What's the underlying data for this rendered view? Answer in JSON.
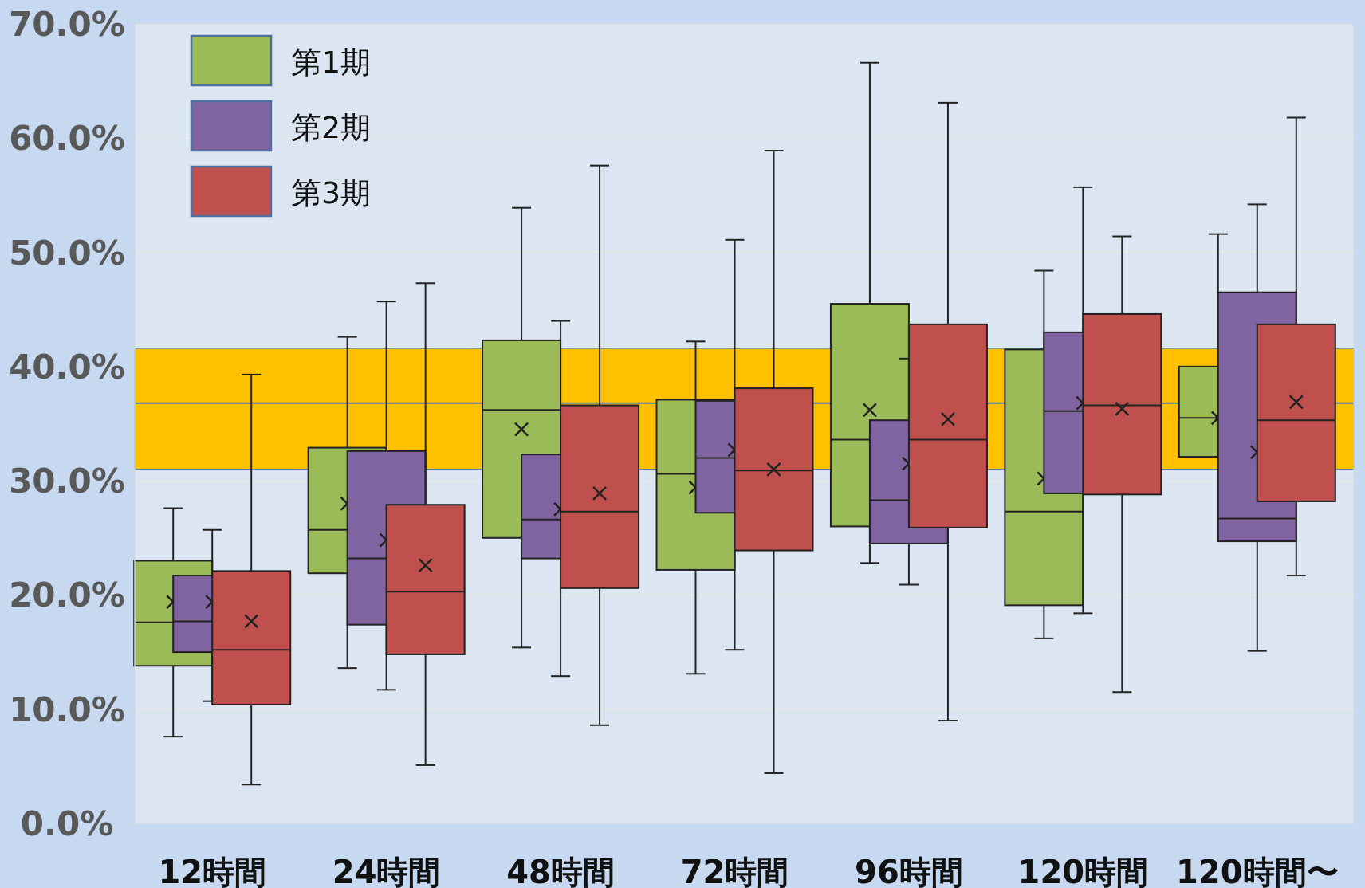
{
  "chart_data": {
    "type": "box",
    "categories": [
      "12時間",
      "24時間",
      "48時間",
      "72時間",
      "96時間",
      "120時間",
      "120時間〜"
    ],
    "series": [
      {
        "name": "第1期",
        "color": "#9bbb59",
        "boxes": [
          {
            "low": 7.6,
            "q1": 13.8,
            "median": 17.6,
            "q3": 23.0,
            "high": 27.6,
            "mean": 19.4
          },
          {
            "low": 13.6,
            "q1": 21.9,
            "median": 25.7,
            "q3": 32.9,
            "high": 42.6,
            "mean": 28.0
          },
          {
            "low": 15.4,
            "q1": 25.0,
            "median": 36.2,
            "q3": 42.3,
            "high": 53.9,
            "mean": 34.5
          },
          {
            "low": 13.1,
            "q1": 22.2,
            "median": 30.6,
            "q3": 37.1,
            "high": 42.2,
            "mean": 29.4
          },
          {
            "low": 22.8,
            "q1": 26.0,
            "median": 33.6,
            "q3": 45.5,
            "high": 66.6,
            "mean": 36.2
          },
          {
            "low": 16.2,
            "q1": 19.1,
            "median": 27.3,
            "q3": 41.5,
            "high": 48.4,
            "mean": 30.2
          },
          {
            "low": 32.1,
            "q1": 32.1,
            "median": 35.5,
            "q3": 40.0,
            "high": 51.6,
            "mean": 35.5
          }
        ]
      },
      {
        "name": "第2期",
        "color": "#8064a2",
        "boxes": [
          {
            "low": 10.7,
            "q1": 15.0,
            "median": 17.7,
            "q3": 21.7,
            "high": 25.7,
            "mean": 19.4
          },
          {
            "low": 11.7,
            "q1": 17.4,
            "median": 23.2,
            "q3": 32.6,
            "high": 45.7,
            "mean": 24.8
          },
          {
            "low": 12.9,
            "q1": 23.2,
            "median": 26.6,
            "q3": 32.3,
            "high": 44.0,
            "mean": 27.5
          },
          {
            "low": 15.2,
            "q1": 27.2,
            "median": 32.0,
            "q3": 37.0,
            "high": 51.1,
            "mean": 32.7
          },
          {
            "low": 20.9,
            "q1": 24.5,
            "median": 28.3,
            "q3": 35.3,
            "high": 40.7,
            "mean": 31.5
          },
          {
            "low": 18.4,
            "q1": 28.9,
            "median": 36.1,
            "q3": 43.0,
            "high": 55.7,
            "mean": 36.8
          },
          {
            "low": 15.1,
            "q1": 24.7,
            "median": 26.7,
            "q3": 46.5,
            "high": 54.2,
            "mean": 32.5
          }
        ]
      },
      {
        "name": "第3期",
        "color": "#c0504d",
        "boxes": [
          {
            "low": 3.4,
            "q1": 10.4,
            "median": 15.2,
            "q3": 22.1,
            "high": 39.3,
            "mean": 17.7
          },
          {
            "low": 5.1,
            "q1": 14.8,
            "median": 20.3,
            "q3": 27.9,
            "high": 47.3,
            "mean": 22.6
          },
          {
            "low": 8.6,
            "q1": 20.6,
            "median": 27.3,
            "q3": 36.6,
            "high": 57.6,
            "mean": 28.9
          },
          {
            "low": 4.4,
            "q1": 23.9,
            "median": 30.9,
            "q3": 38.1,
            "high": 58.9,
            "mean": 31.0
          },
          {
            "low": 9.0,
            "q1": 25.9,
            "median": 33.6,
            "q3": 43.7,
            "high": 63.1,
            "mean": 35.4
          },
          {
            "low": 11.5,
            "q1": 28.8,
            "median": 36.6,
            "q3": 44.6,
            "high": 51.4,
            "mean": 36.3
          },
          {
            "low": 21.7,
            "q1": 28.2,
            "median": 35.3,
            "q3": 43.7,
            "high": 61.8,
            "mean": 36.9
          }
        ]
      }
    ],
    "ylim": [
      0,
      70
    ],
    "yticks": [
      {
        "value": 0,
        "label": "0.0%"
      },
      {
        "value": 10,
        "label": "10.0%"
      },
      {
        "value": 20,
        "label": "20.0%"
      },
      {
        "value": 30,
        "label": "30.0%"
      },
      {
        "value": 40,
        "label": "40.0%"
      },
      {
        "value": 50,
        "label": "50.0%"
      },
      {
        "value": 60,
        "label": "60.0%"
      },
      {
        "value": 70,
        "label": "70.0%"
      }
    ],
    "grid": "y",
    "legend": "top left",
    "marker": "cross",
    "bands": [
      {
        "axis": "y",
        "from": 31.0,
        "to": 41.6,
        "color": "#ffc000"
      }
    ],
    "ref_lines": [
      {
        "axis": "y",
        "value": 36.8,
        "color": "#4f81bd"
      }
    ]
  }
}
